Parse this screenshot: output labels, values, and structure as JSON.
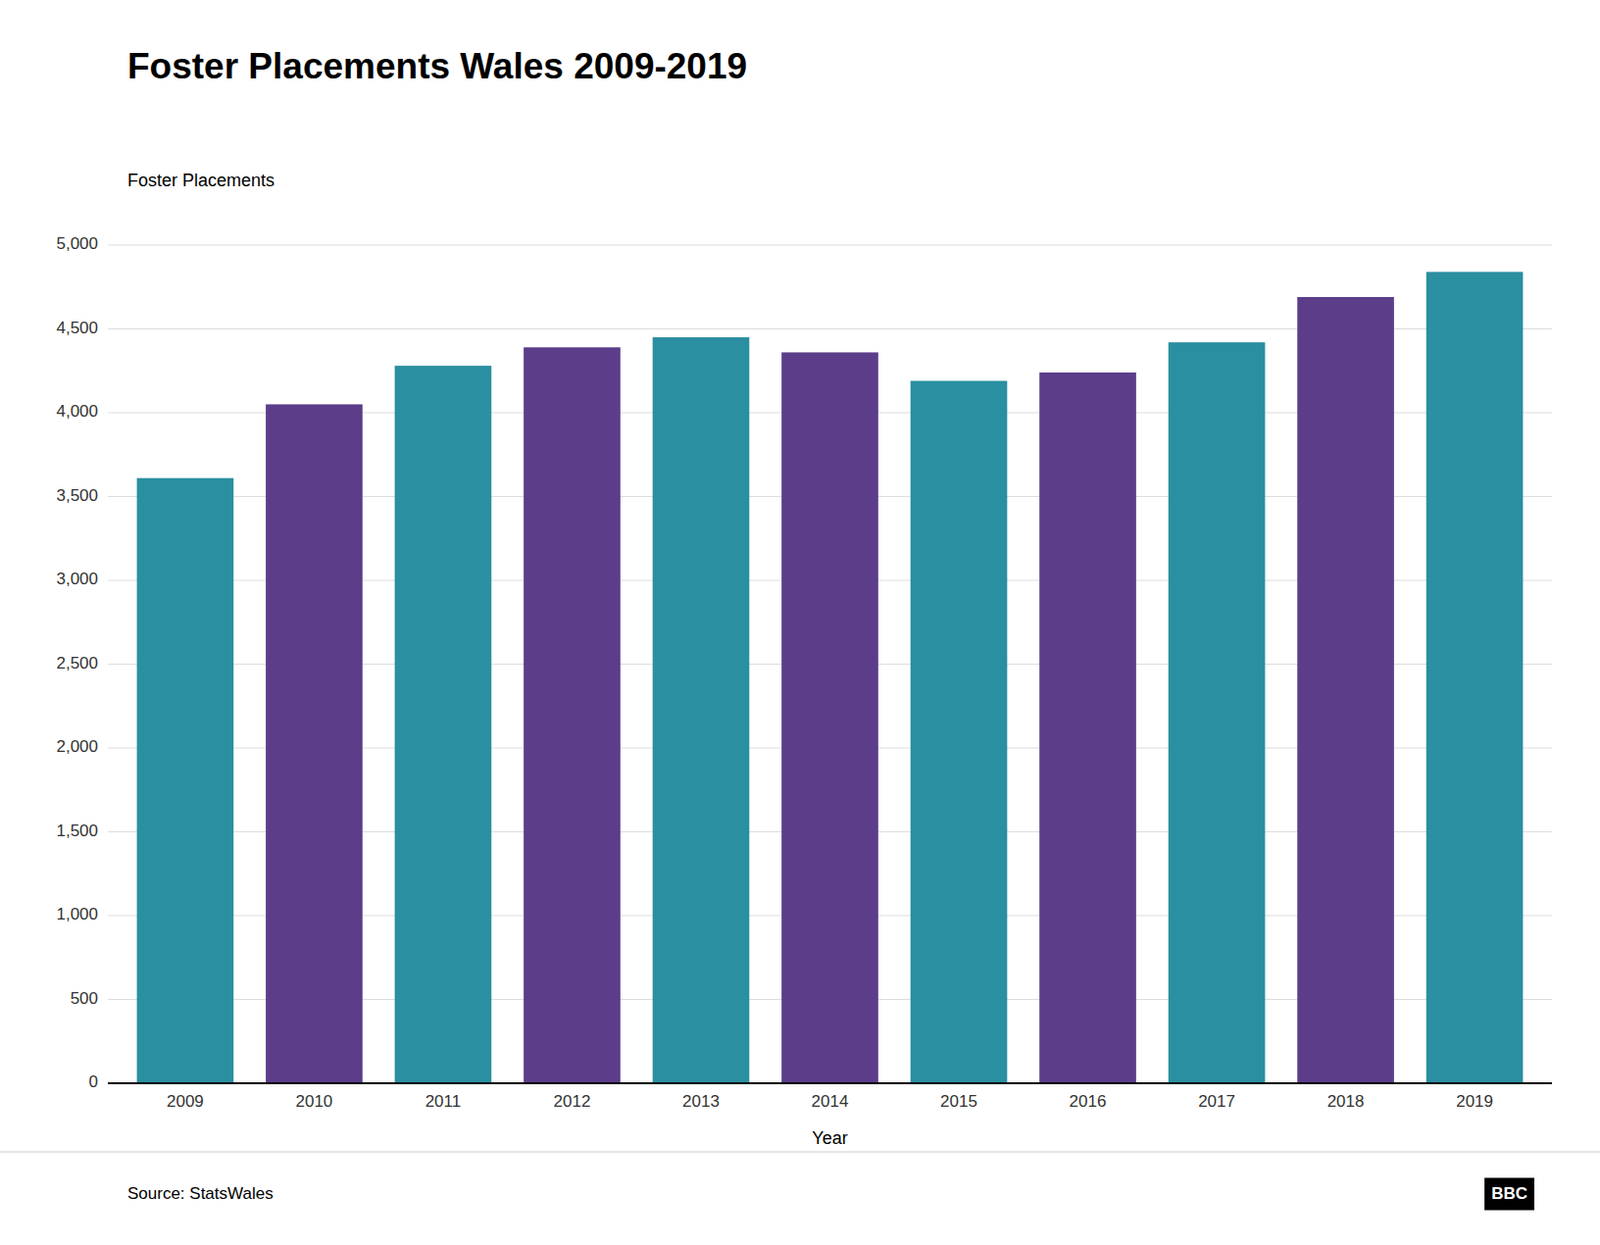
{
  "chart_data": {
    "type": "bar",
    "title": "Foster Placements Wales 2009-2019",
    "x_label": "Year",
    "y_label": "Foster Placements",
    "categories": [
      "2009",
      "2010",
      "2011",
      "2012",
      "2013",
      "2014",
      "2015",
      "2016",
      "2017",
      "2018",
      "2019"
    ],
    "values": [
      3610,
      4050,
      4280,
      4390,
      4450,
      4360,
      4190,
      4240,
      4420,
      4690,
      4840
    ],
    "colors": [
      "#2a8fa0",
      "#5b3d8a",
      "#2a8fa0",
      "#5b3d8a",
      "#2a8fa0",
      "#5b3d8a",
      "#2a8fa0",
      "#5b3d8a",
      "#2a8fa0",
      "#5b3d8a",
      "#2a8fa0"
    ],
    "ylim": [
      0,
      5000
    ],
    "yticks": [
      0,
      500,
      {
        "value": 1000,
        "label": "1,000"
      },
      {
        "value": 1500,
        "label": "1,500"
      },
      {
        "value": 2000,
        "label": "2,000"
      },
      {
        "value": 2500,
        "label": "2,500"
      },
      {
        "value": 3000,
        "label": "3,000"
      },
      {
        "value": 3500,
        "label": "3,500"
      },
      {
        "value": 4000,
        "label": "4,000"
      },
      {
        "value": 4500,
        "label": "4,500"
      },
      {
        "value": 5000,
        "label": "5,000"
      }
    ],
    "grid": true,
    "annotations": [
      "Source: StatsWales",
      "BBC"
    ]
  }
}
